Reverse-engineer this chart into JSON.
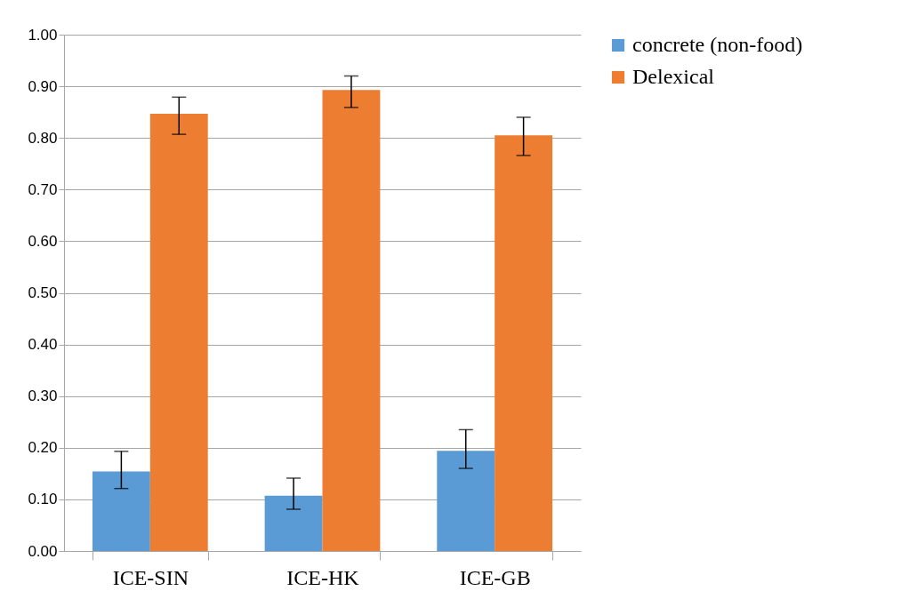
{
  "chart_data": {
    "type": "bar",
    "categories": [
      "ICE-SIN",
      "ICE-HK",
      "ICE-GB"
    ],
    "series": [
      {
        "name": "concrete (non-food)",
        "color": "#5b9bd5",
        "values": [
          0.154,
          0.107,
          0.194
        ],
        "errors": [
          [
            0.121,
            0.193
          ],
          [
            0.081,
            0.141
          ],
          [
            0.16,
            0.235
          ]
        ]
      },
      {
        "name": "Delexical",
        "color": "#ed7d31",
        "values": [
          0.847,
          0.893,
          0.805
        ],
        "errors": [
          [
            0.807,
            0.879
          ],
          [
            0.859,
            0.92
          ],
          [
            0.766,
            0.84
          ]
        ]
      }
    ],
    "ylim": [
      0,
      1
    ],
    "yticks": [
      {
        "value": 0,
        "label": "0.00"
      },
      {
        "value": 0.1,
        "label": "0.10"
      },
      {
        "value": 0.2,
        "label": "0.20"
      },
      {
        "value": 0.3,
        "label": "0.30"
      },
      {
        "value": 0.4,
        "label": "0.40"
      },
      {
        "value": 0.5,
        "label": "0.50"
      },
      {
        "value": 0.6,
        "label": "0.60"
      },
      {
        "value": 0.7,
        "label": "0.70"
      },
      {
        "value": 0.8,
        "label": "0.80"
      },
      {
        "value": 0.9,
        "label": "0.90"
      },
      {
        "value": 1,
        "label": "1.00"
      }
    ],
    "grid": "y",
    "legend": "right"
  }
}
